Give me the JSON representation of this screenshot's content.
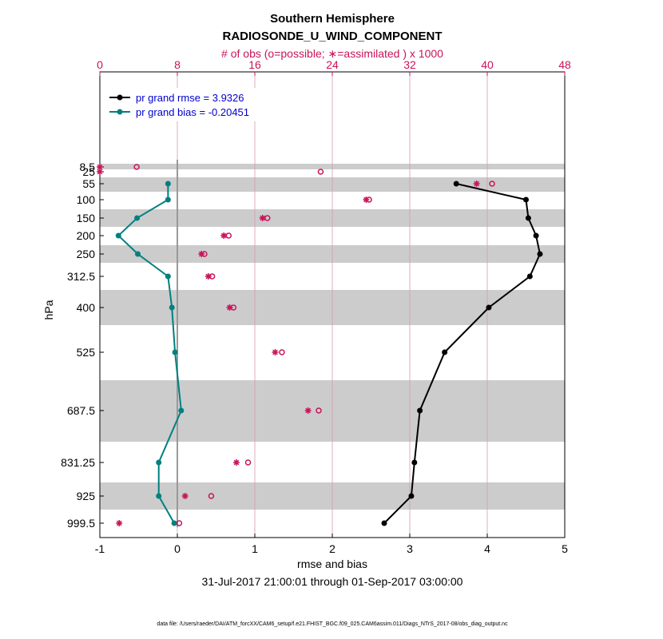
{
  "chart_data": {
    "type": "line",
    "title": "Southern Hemisphere",
    "subtitle": "RADIOSONDE_U_WIND_COMPONENT",
    "top_axis_label": "# of obs (o=possible; ∗=assimilated ) x 1000",
    "xlabel": "rmse and bias",
    "ylabel": "hPa",
    "date_range": "31-Jul-2017 21:00:01 through 01-Sep-2017 03:00:00",
    "footnote": "data file: /Users/raeder/DAI/ATM_forcXX/CAM6_setup/f.e21.FHIST_BGC.f09_025.CAM6assim.011/Diags_NTrS_2017-08/obs_diag_output.nc",
    "xlim": [
      -1,
      5
    ],
    "xticks": [
      -1,
      0,
      1,
      2,
      3,
      4,
      5
    ],
    "top_xlim": [
      0,
      48
    ],
    "top_xticks": [
      0,
      8,
      16,
      24,
      32,
      40,
      48
    ],
    "levels": [
      "8.5",
      "25",
      "55",
      "100",
      "150",
      "200",
      "250",
      "312.5",
      "400",
      "525",
      "687.5",
      "831.25",
      "925",
      "999.5"
    ],
    "zero_line": 0,
    "series": [
      {
        "name": "pr grand rmse = 3.9326",
        "color": "#000000",
        "levels": [
          "55",
          "100",
          "150",
          "200",
          "250",
          "312.5",
          "400",
          "525",
          "687.5",
          "831.25",
          "925",
          "999.5"
        ],
        "values": [
          3.6,
          4.5,
          4.53,
          4.63,
          4.68,
          4.55,
          4.02,
          3.45,
          3.13,
          3.06,
          3.02,
          2.67
        ]
      },
      {
        "name": "pr grand bias = -0.20451",
        "color": "#008080",
        "levels": [
          "55",
          "100",
          "150",
          "200",
          "250",
          "312.5",
          "400",
          "525",
          "687.5",
          "831.25",
          "925",
          "999.5"
        ],
        "values": [
          -0.12,
          -0.12,
          -0.52,
          -0.76,
          -0.51,
          -0.12,
          -0.07,
          -0.03,
          0.05,
          -0.24,
          -0.24,
          -0.04
        ]
      }
    ],
    "obs_possible": {
      "levels": [
        "8.5",
        "25",
        "55",
        "100",
        "150",
        "200",
        "250",
        "312.5",
        "400",
        "525",
        "687.5",
        "831.25",
        "925",
        "999.5"
      ],
      "values": [
        3.8,
        22.8,
        40.5,
        27.8,
        17.3,
        13.3,
        10.8,
        11.6,
        13.8,
        18.8,
        22.6,
        15.3,
        11.5,
        8.2
      ]
    },
    "obs_assimilated": {
      "levels": [
        "8.5",
        "25",
        "55",
        "100",
        "150",
        "200",
        "250",
        "312.5",
        "400",
        "525",
        "687.5",
        "831.25",
        "925",
        "999.5"
      ],
      "values": [
        0.0,
        0.0,
        38.9,
        27.5,
        16.8,
        12.8,
        10.5,
        11.2,
        13.4,
        18.1,
        21.5,
        14.1,
        8.8,
        2.0
      ]
    }
  }
}
